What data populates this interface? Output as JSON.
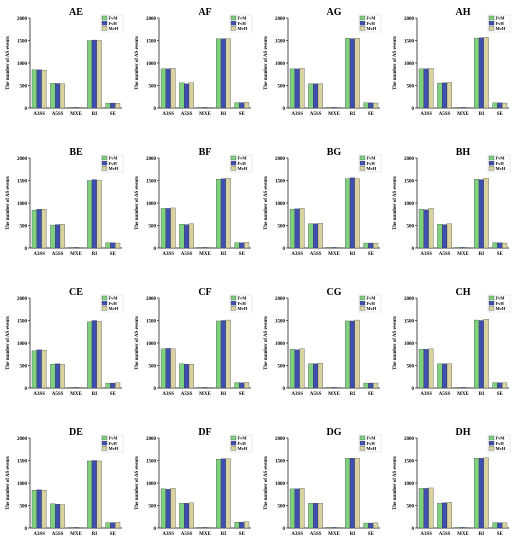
{
  "legend_labels": [
    "FvM",
    "FvH",
    "MvH"
  ],
  "series_colors": [
    "#7fd17f",
    "#3f4fb0",
    "#d8d2a0"
  ],
  "ylabel": "The number of AS events",
  "categories": [
    "A3SS",
    "A5SS",
    "MXE",
    "RI",
    "SE"
  ],
  "yticks": [
    0,
    500,
    1000,
    1500,
    2000
  ],
  "chart_data": [
    {
      "type": "bar",
      "title": "AE",
      "categories": [
        "A3SS",
        "A5SS",
        "MXE",
        "RI",
        "SE"
      ],
      "ylim": [
        0,
        2000
      ],
      "legend": "top-right",
      "series": [
        {
          "name": "FvM",
          "values": [
            850,
            550,
            5,
            1500,
            110
          ]
        },
        {
          "name": "FvH",
          "values": [
            850,
            545,
            5,
            1510,
            110
          ]
        },
        {
          "name": "MvH",
          "values": [
            840,
            540,
            5,
            1500,
            105
          ]
        }
      ]
    },
    {
      "type": "bar",
      "title": "AF",
      "categories": [
        "A3SS",
        "A5SS",
        "MXE",
        "RI",
        "SE"
      ],
      "ylim": [
        0,
        2000
      ],
      "legend": "top-right",
      "series": [
        {
          "name": "FvM",
          "values": [
            870,
            560,
            5,
            1540,
            120
          ]
        },
        {
          "name": "FvH",
          "values": [
            870,
            540,
            5,
            1540,
            120
          ]
        },
        {
          "name": "MvH",
          "values": [
            880,
            560,
            5,
            1540,
            125
          ]
        }
      ]
    },
    {
      "type": "bar",
      "title": "AG",
      "categories": [
        "A3SS",
        "A5SS",
        "MXE",
        "RI",
        "SE"
      ],
      "ylim": [
        0,
        2000
      ],
      "legend": "top-right",
      "series": [
        {
          "name": "FvM",
          "values": [
            870,
            540,
            5,
            1550,
            115
          ]
        },
        {
          "name": "FvH",
          "values": [
            870,
            540,
            5,
            1540,
            115
          ]
        },
        {
          "name": "MvH",
          "values": [
            880,
            540,
            5,
            1550,
            110
          ]
        }
      ]
    },
    {
      "type": "bar",
      "title": "AH",
      "categories": [
        "A3SS",
        "A5SS",
        "MXE",
        "RI",
        "SE"
      ],
      "ylim": [
        0,
        2000
      ],
      "legend": "top-right",
      "series": [
        {
          "name": "FvM",
          "values": [
            870,
            550,
            5,
            1550,
            115
          ]
        },
        {
          "name": "FvH",
          "values": [
            870,
            560,
            5,
            1560,
            115
          ]
        },
        {
          "name": "MvH",
          "values": [
            880,
            570,
            5,
            1570,
            110
          ]
        }
      ]
    },
    {
      "type": "bar",
      "title": "BE",
      "categories": [
        "A3SS",
        "A5SS",
        "MXE",
        "RI",
        "SE"
      ],
      "ylim": [
        0,
        2000
      ],
      "legend": "top-right",
      "series": [
        {
          "name": "FvM",
          "values": [
            840,
            510,
            5,
            1500,
            115
          ]
        },
        {
          "name": "FvH",
          "values": [
            860,
            520,
            5,
            1520,
            115
          ]
        },
        {
          "name": "MvH",
          "values": [
            860,
            530,
            5,
            1500,
            110
          ]
        }
      ]
    },
    {
      "type": "bar",
      "title": "BF",
      "categories": [
        "A3SS",
        "A5SS",
        "MXE",
        "RI",
        "SE"
      ],
      "ylim": [
        0,
        2000
      ],
      "legend": "top-right",
      "series": [
        {
          "name": "FvM",
          "values": [
            880,
            530,
            5,
            1530,
            120
          ]
        },
        {
          "name": "FvH",
          "values": [
            880,
            520,
            5,
            1540,
            115
          ]
        },
        {
          "name": "MvH",
          "values": [
            890,
            540,
            5,
            1550,
            125
          ]
        }
      ]
    },
    {
      "type": "bar",
      "title": "BG",
      "categories": [
        "A3SS",
        "A5SS",
        "MXE",
        "RI",
        "SE"
      ],
      "ylim": [
        0,
        2000
      ],
      "legend": "top-right",
      "series": [
        {
          "name": "FvM",
          "values": [
            860,
            540,
            5,
            1540,
            110
          ]
        },
        {
          "name": "FvH",
          "values": [
            870,
            540,
            5,
            1560,
            110
          ]
        },
        {
          "name": "MvH",
          "values": [
            880,
            550,
            5,
            1540,
            110
          ]
        }
      ]
    },
    {
      "type": "bar",
      "title": "BH",
      "categories": [
        "A3SS",
        "A5SS",
        "MXE",
        "RI",
        "SE"
      ],
      "ylim": [
        0,
        2000
      ],
      "legend": "top-right",
      "series": [
        {
          "name": "FvM",
          "values": [
            860,
            530,
            5,
            1530,
            120
          ]
        },
        {
          "name": "FvH",
          "values": [
            850,
            520,
            5,
            1520,
            115
          ]
        },
        {
          "name": "MvH",
          "values": [
            880,
            540,
            5,
            1550,
            110
          ]
        }
      ]
    },
    {
      "type": "bar",
      "title": "CE",
      "categories": [
        "A3SS",
        "A5SS",
        "MXE",
        "RI",
        "SE"
      ],
      "ylim": [
        0,
        2000
      ],
      "legend": "top-right",
      "series": [
        {
          "name": "FvM",
          "values": [
            830,
            530,
            5,
            1470,
            110
          ]
        },
        {
          "name": "FvH",
          "values": [
            850,
            540,
            5,
            1500,
            110
          ]
        },
        {
          "name": "MvH",
          "values": [
            840,
            530,
            5,
            1480,
            115
          ]
        }
      ]
    },
    {
      "type": "bar",
      "title": "CF",
      "categories": [
        "A3SS",
        "A5SS",
        "MXE",
        "RI",
        "SE"
      ],
      "ylim": [
        0,
        2000
      ],
      "legend": "top-right",
      "series": [
        {
          "name": "FvM",
          "values": [
            870,
            540,
            5,
            1490,
            120
          ]
        },
        {
          "name": "FvH",
          "values": [
            880,
            530,
            5,
            1500,
            115
          ]
        },
        {
          "name": "MvH",
          "values": [
            870,
            530,
            5,
            1510,
            125
          ]
        }
      ]
    },
    {
      "type": "bar",
      "title": "CG",
      "categories": [
        "A3SS",
        "A5SS",
        "MXE",
        "RI",
        "SE"
      ],
      "ylim": [
        0,
        2000
      ],
      "legend": "top-right",
      "series": [
        {
          "name": "FvM",
          "values": [
            860,
            540,
            5,
            1490,
            110
          ]
        },
        {
          "name": "FvH",
          "values": [
            850,
            540,
            5,
            1490,
            110
          ]
        },
        {
          "name": "MvH",
          "values": [
            870,
            550,
            5,
            1510,
            110
          ]
        }
      ]
    },
    {
      "type": "bar",
      "title": "CH",
      "categories": [
        "A3SS",
        "A5SS",
        "MXE",
        "RI",
        "SE"
      ],
      "ylim": [
        0,
        2000
      ],
      "legend": "top-right",
      "series": [
        {
          "name": "FvM",
          "values": [
            860,
            540,
            5,
            1510,
            120
          ]
        },
        {
          "name": "FvH",
          "values": [
            860,
            540,
            5,
            1500,
            115
          ]
        },
        {
          "name": "MvH",
          "values": [
            870,
            540,
            5,
            1530,
            115
          ]
        }
      ]
    },
    {
      "type": "bar",
      "title": "DE",
      "categories": [
        "A3SS",
        "A5SS",
        "MXE",
        "RI",
        "SE"
      ],
      "ylim": [
        0,
        2000
      ],
      "legend": "top-right",
      "series": [
        {
          "name": "FvM",
          "values": [
            840,
            540,
            5,
            1490,
            120
          ]
        },
        {
          "name": "FvH",
          "values": [
            850,
            530,
            5,
            1500,
            120
          ]
        },
        {
          "name": "MvH",
          "values": [
            840,
            520,
            5,
            1490,
            125
          ]
        }
      ]
    },
    {
      "type": "bar",
      "title": "DF",
      "categories": [
        "A3SS",
        "A5SS",
        "MXE",
        "RI",
        "SE"
      ],
      "ylim": [
        0,
        2000
      ],
      "legend": "top-right",
      "series": [
        {
          "name": "FvM",
          "values": [
            870,
            550,
            5,
            1530,
            130
          ]
        },
        {
          "name": "FvH",
          "values": [
            860,
            550,
            5,
            1540,
            130
          ]
        },
        {
          "name": "MvH",
          "values": [
            880,
            560,
            5,
            1540,
            140
          ]
        }
      ]
    },
    {
      "type": "bar",
      "title": "DG",
      "categories": [
        "A3SS",
        "A5SS",
        "MXE",
        "RI",
        "SE"
      ],
      "ylim": [
        0,
        2000
      ],
      "legend": "top-right",
      "series": [
        {
          "name": "FvM",
          "values": [
            870,
            550,
            5,
            1550,
            110
          ]
        },
        {
          "name": "FvH",
          "values": [
            870,
            550,
            5,
            1550,
            110
          ]
        },
        {
          "name": "MvH",
          "values": [
            880,
            550,
            5,
            1550,
            115
          ]
        }
      ]
    },
    {
      "type": "bar",
      "title": "DH",
      "categories": [
        "A3SS",
        "A5SS",
        "MXE",
        "RI",
        "SE"
      ],
      "ylim": [
        0,
        2000
      ],
      "legend": "top-right",
      "series": [
        {
          "name": "FvM",
          "values": [
            880,
            550,
            5,
            1550,
            120
          ]
        },
        {
          "name": "FvH",
          "values": [
            880,
            560,
            5,
            1550,
            115
          ]
        },
        {
          "name": "MvH",
          "values": [
            890,
            570,
            5,
            1560,
            115
          ]
        }
      ]
    }
  ]
}
